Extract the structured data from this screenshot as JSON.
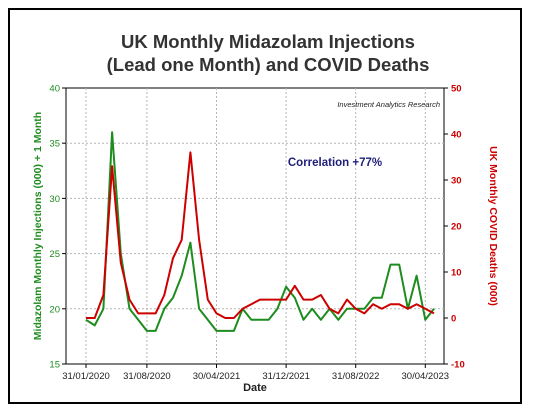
{
  "chart_data": {
    "type": "line",
    "title_lines": [
      "UK Monthly Midazolam Injections",
      "(Lead one Month) and COVID Deaths"
    ],
    "source_note": "Investment Analytics Research",
    "annotation": "Correlation +77%",
    "xlabel": "Date",
    "ylabel_left": "Midazolam Monthly Injections (000) + 1 Month",
    "ylabel_right": "UK Monthly COVID Deaths (000)",
    "x_ticks": [
      "31/01/2020",
      "31/08/2020",
      "30/04/2021",
      "31/12/2021",
      "31/08/2022",
      "30/04/2023"
    ],
    "x_tick_index": [
      0,
      7,
      15,
      23,
      31,
      39
    ],
    "ylim_left": [
      15,
      40
    ],
    "yticks_left": [
      "15",
      "20",
      "25",
      "30",
      "35",
      "40"
    ],
    "ylim_right": [
      -10,
      50
    ],
    "yticks_right": [
      "-10",
      "0",
      "10",
      "20",
      "30",
      "40",
      "50"
    ],
    "grid": true,
    "series": [
      {
        "axis": "left",
        "color": "#1e8c1e",
        "values": [
          19,
          18.5,
          20,
          36,
          25,
          20,
          19,
          18,
          18,
          20,
          21,
          23,
          26,
          20,
          19,
          18,
          18,
          18,
          20,
          19,
          19,
          19,
          20,
          22,
          21,
          19,
          20,
          19,
          20,
          19,
          20,
          20,
          20,
          21,
          21,
          24,
          24,
          20,
          23,
          19,
          20
        ]
      },
      {
        "axis": "right",
        "color": "#cc0000",
        "values": [
          0,
          0,
          5,
          33,
          12,
          4,
          1,
          1,
          1,
          5,
          13,
          17,
          36,
          17,
          4,
          1,
          0,
          0,
          2,
          3,
          4,
          4,
          4,
          4,
          7,
          4,
          4,
          5,
          2,
          1,
          4,
          2,
          1,
          3,
          2,
          3,
          3,
          2,
          3,
          2,
          1
        ]
      }
    ]
  }
}
